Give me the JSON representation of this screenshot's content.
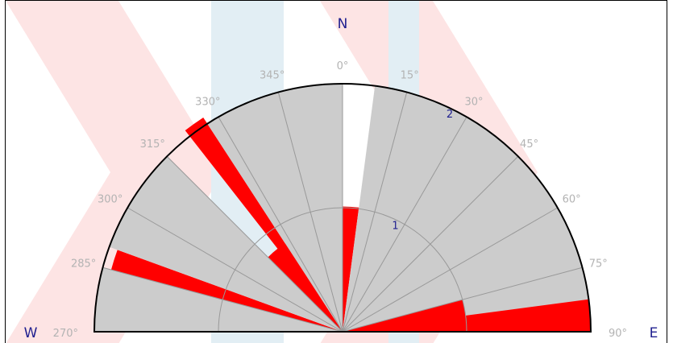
{
  "chart_data": {
    "type": "polar-bar",
    "title": "",
    "cardinals": [
      {
        "label": "N",
        "angle": 0
      },
      {
        "label": "E",
        "angle": 90
      },
      {
        "label": "W",
        "angle": 270
      }
    ],
    "angle_ticks": [
      {
        "label": "270°",
        "angle": 270
      },
      {
        "label": "285°",
        "angle": 285
      },
      {
        "label": "300°",
        "angle": 300
      },
      {
        "label": "315°",
        "angle": 315
      },
      {
        "label": "330°",
        "angle": 330
      },
      {
        "label": "345°",
        "angle": 345
      },
      {
        "label": "0°",
        "angle": 0
      },
      {
        "label": "15°",
        "angle": 15
      },
      {
        "label": "30°",
        "angle": 30
      },
      {
        "label": "45°",
        "angle": 45
      },
      {
        "label": "60°",
        "angle": 60
      },
      {
        "label": "75°",
        "angle": 75
      },
      {
        "label": "90°",
        "angle": 90
      }
    ],
    "radial_ticks": [
      {
        "label": "1",
        "value": 1
      },
      {
        "label": "2",
        "value": 2
      }
    ],
    "rmax": 2,
    "angle_range": [
      270,
      450
    ],
    "sectors": [
      {
        "start": 270,
        "end": 285,
        "value": 2.0,
        "color": "#cccccc"
      },
      {
        "start": 285,
        "end": 290,
        "value": 1.93,
        "color": "#ff0000"
      },
      {
        "start": 290,
        "end": 315,
        "value": 2.0,
        "color": "#cccccc"
      },
      {
        "start": 315,
        "end": 330,
        "value": 0.85,
        "color": "#ff0000"
      },
      {
        "start": 322,
        "end": 327,
        "value": 2.06,
        "color": "#ff0000"
      },
      {
        "start": 327,
        "end": 360,
        "value": 2.0,
        "color": "#cccccc"
      },
      {
        "start": 0,
        "end": 7.5,
        "value": 1.01,
        "color": "#ff0000"
      },
      {
        "start": 7.5,
        "end": 75,
        "value": 2.0,
        "color": "#cccccc"
      },
      {
        "start": 75,
        "end": 90,
        "value": 2.0,
        "color": "#cccccc"
      },
      {
        "start": 82.5,
        "end": 90,
        "value": 2.0,
        "color": "#ff0000"
      },
      {
        "start": 75,
        "end": 90,
        "value": 1.0,
        "color": "#ff0000"
      }
    ],
    "colors": {
      "filled": "#ff0000",
      "empty": "#cccccc",
      "grid": "#999999",
      "outline": "#000000"
    }
  }
}
